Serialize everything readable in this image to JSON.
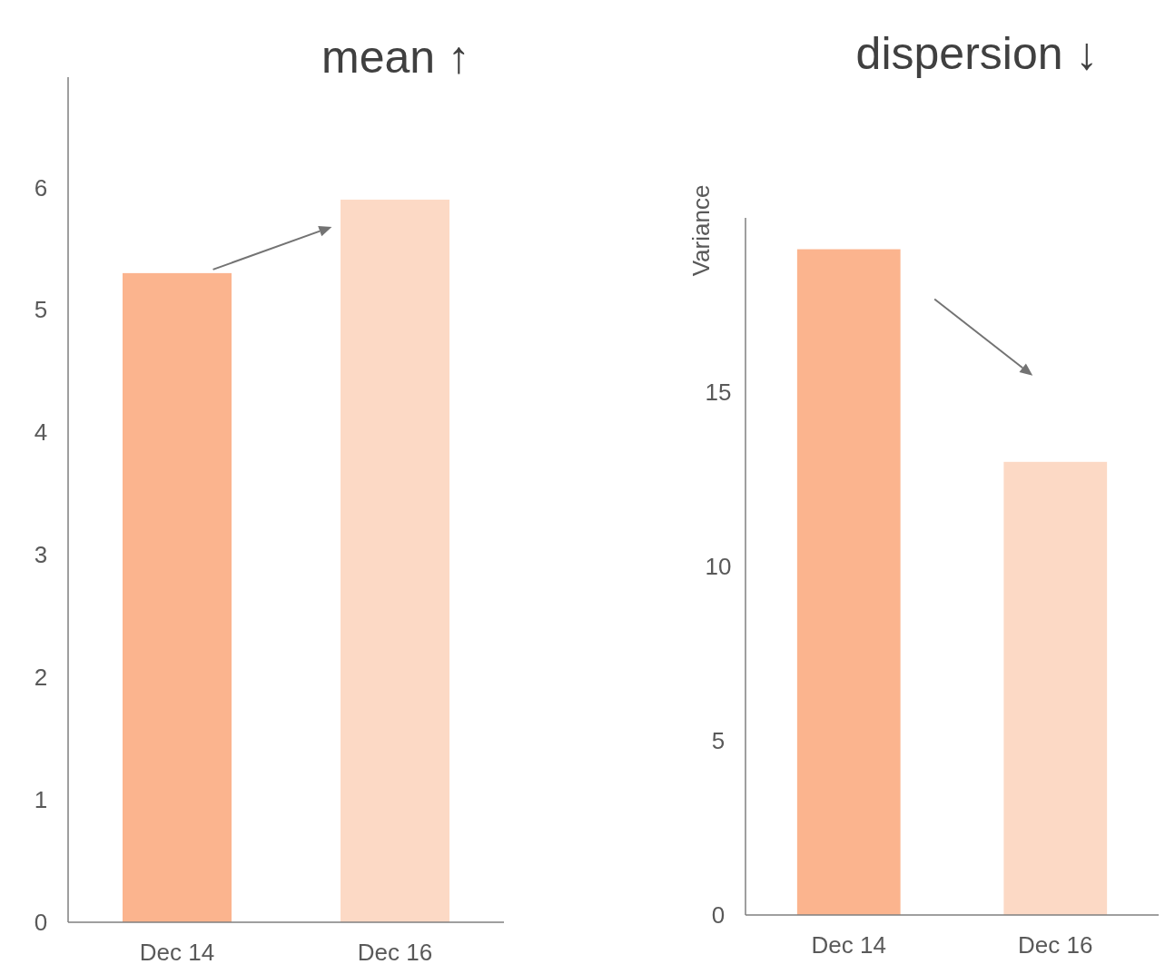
{
  "chart_data": [
    {
      "type": "bar",
      "title": "mean ↑",
      "categories": [
        "Dec 14",
        "Dec 16"
      ],
      "values": [
        5.3,
        5.9
      ],
      "colors": [
        "#fbb48e",
        "#fcd9c5"
      ],
      "ylim": [
        0,
        6.9
      ],
      "yticks": [
        0,
        1,
        2,
        3,
        4,
        5,
        6
      ],
      "grid": false
    },
    {
      "type": "bar",
      "title": "dispersion ↓",
      "ylabel": "Variance",
      "categories": [
        "Dec 14",
        "Dec 16"
      ],
      "values": [
        19.1,
        13.0
      ],
      "colors": [
        "#fbb48e",
        "#fcd9c5"
      ],
      "ylim": [
        0,
        20
      ],
      "yticks": [
        0,
        5,
        10,
        15
      ],
      "grid": false
    }
  ]
}
